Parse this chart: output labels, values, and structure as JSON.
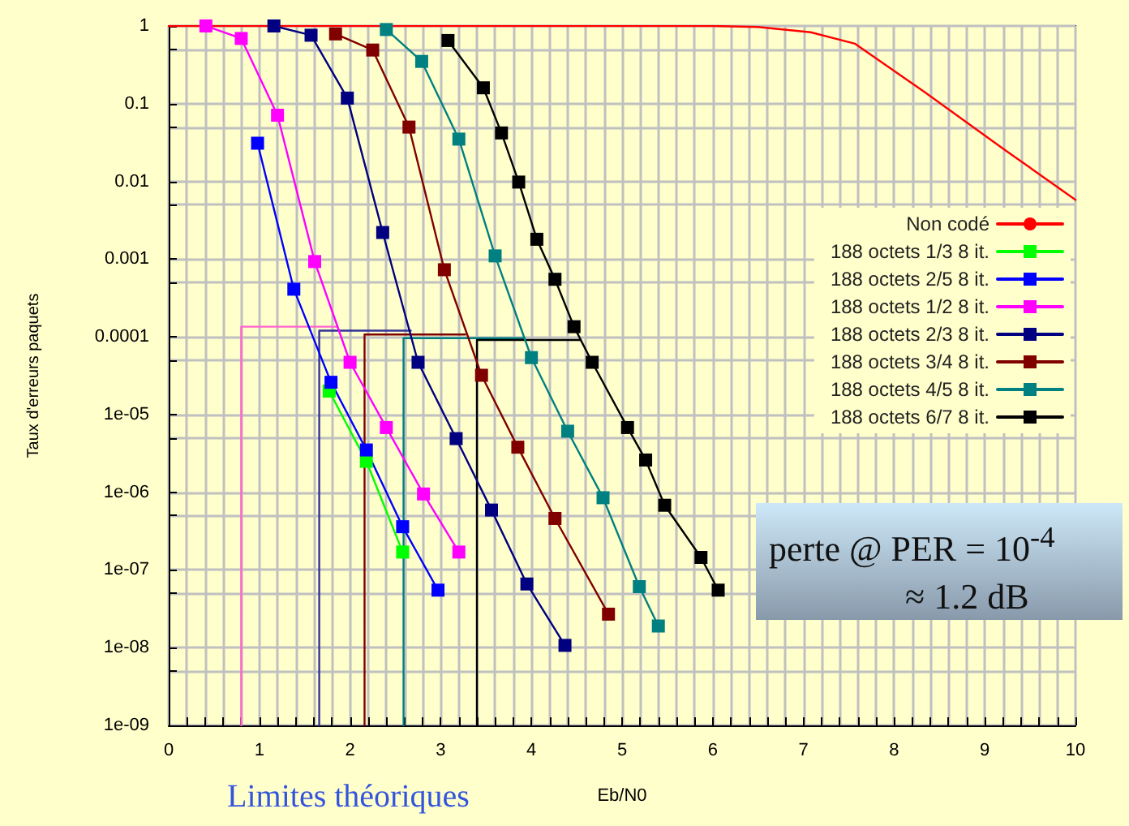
{
  "chart_data": {
    "type": "line",
    "xlabel": "Eb/N0",
    "ylabel": "Taux d'erreurs paquets",
    "xlim": [
      0,
      10
    ],
    "xticks": [
      0,
      {
        "value": 0.2,
        "label": null
      },
      {
        "value": 0.4,
        "label": null
      },
      {
        "value": 0.6,
        "label": null
      },
      {
        "value": 0.8,
        "label": null
      },
      1,
      {
        "value": 1.2,
        "label": null
      },
      {
        "value": 1.4,
        "label": null
      },
      {
        "value": 1.6,
        "label": null
      },
      {
        "value": 1.8,
        "label": null
      },
      2,
      {
        "value": 2.2,
        "label": null
      },
      {
        "value": 2.4,
        "label": null
      },
      {
        "value": 2.6,
        "label": null
      },
      {
        "value": 2.8,
        "label": null
      },
      3,
      {
        "value": 3.2,
        "label": null
      },
      {
        "value": 3.4,
        "label": null
      },
      {
        "value": 3.6,
        "label": null
      },
      {
        "value": 3.8,
        "label": null
      },
      4,
      {
        "value": 4.2,
        "label": null
      },
      {
        "value": 4.4,
        "label": null
      },
      {
        "value": 4.6,
        "label": null
      },
      {
        "value": 4.8,
        "label": null
      },
      5,
      {
        "value": 5.2,
        "label": null
      },
      {
        "value": 5.4,
        "label": null
      },
      {
        "value": 5.6,
        "label": null
      },
      {
        "value": 5.8,
        "label": null
      },
      6,
      {
        "value": 6.2,
        "label": null
      },
      {
        "value": 6.4,
        "label": null
      },
      {
        "value": 6.6,
        "label": null
      },
      {
        "value": 6.8,
        "label": null
      },
      7,
      {
        "value": 7.2,
        "label": null
      },
      {
        "value": 7.4,
        "label": null
      },
      {
        "value": 7.6,
        "label": null
      },
      {
        "value": 7.8,
        "label": null
      },
      8,
      {
        "value": 8.2,
        "label": null
      },
      {
        "value": 8.4,
        "label": null
      },
      {
        "value": 8.6,
        "label": null
      },
      {
        "value": 8.8,
        "label": null
      },
      9,
      {
        "value": 9.2,
        "label": null
      },
      {
        "value": 9.4,
        "label": null
      },
      {
        "value": 9.6,
        "label": null
      },
      {
        "value": 9.8,
        "label": null
      },
      10
    ],
    "ylim": [
      1e-09,
      1
    ],
    "yticks": [
      1,
      {
        "value": 0.5,
        "label": null
      },
      0.1,
      {
        "value": 0.05,
        "label": null
      },
      0.01,
      {
        "value": 0.005,
        "label": null
      },
      0.001,
      {
        "value": 0.0005,
        "label": null
      },
      0.0001,
      {
        "value": 5e-05,
        "label": null
      },
      {
        "value": 1e-05,
        "label": "1e-05"
      },
      {
        "value": 5e-06,
        "label": null
      },
      {
        "value": 1e-06,
        "label": "1e-06"
      },
      {
        "value": 5e-07,
        "label": null
      },
      {
        "value": 1e-07,
        "label": "1e-07"
      },
      {
        "value": 5e-08,
        "label": null
      },
      {
        "value": 1e-08,
        "label": "1e-08"
      },
      {
        "value": 5e-09,
        "label": null
      },
      {
        "value": 1e-09,
        "label": "1e-09"
      }
    ],
    "log": "y",
    "grid": true,
    "legend": "right",
    "marker": "square",
    "line_style": "solid",
    "series": [
      {
        "name": "Non codé",
        "color": "#ff0000",
        "marker": "none",
        "x": [
          0,
          2,
          4,
          6,
          6.5,
          7.08,
          7.57,
          8.34,
          9.23,
          10
        ],
        "values": [
          1,
          1,
          1,
          1,
          0.97,
          0.83,
          0.59,
          0.14,
          0.025,
          0.0058
        ]
      },
      {
        "name": "188 octets 1/3 8 it.",
        "color": "#00ff00",
        "x": [
          1.77,
          2.18,
          2.58
        ],
        "values": [
          2e-05,
          2.5e-06,
          1.7e-07
        ]
      },
      {
        "name": "188 octets 2/5 8 it.",
        "color": "#0000ff",
        "x": [
          0.98,
          1.38,
          1.79,
          2.18,
          2.58,
          2.97
        ],
        "values": [
          0.031,
          0.00041,
          2.6e-05,
          3.5e-06,
          3.6e-07,
          5.5e-08
        ]
      },
      {
        "name": "188 octets 1/2 8 it.",
        "color": "#ff00ff",
        "x": [
          0.41,
          0.8,
          1.2,
          1.61,
          2.0,
          2.4,
          2.81,
          3.2
        ],
        "values": [
          1,
          0.69,
          0.071,
          0.00093,
          4.7e-05,
          6.8e-06,
          9.5e-07,
          1.7e-07
        ]
      },
      {
        "name": "188 octets 2/3 8 it.",
        "color": "#000080",
        "x": [
          1.16,
          1.57,
          1.97,
          2.36,
          2.75,
          3.17,
          3.56,
          3.95,
          4.37
        ],
        "values": [
          1,
          0.76,
          0.118,
          0.0022,
          4.7e-05,
          4.9e-06,
          5.9e-07,
          6.6e-08,
          1.07e-08
        ]
      },
      {
        "name": "188 octets 3/4 8 it.",
        "color": "#800000",
        "x": [
          1.84,
          2.25,
          2.65,
          3.04,
          3.45,
          3.85,
          4.26,
          4.85
        ],
        "values": [
          0.79,
          0.49,
          0.05,
          0.00073,
          3.2e-05,
          3.8e-06,
          4.6e-07,
          2.7e-08
        ]
      },
      {
        "name": "188 octets 4/5 8 it.",
        "color": "#008080",
        "x": [
          2.4,
          2.79,
          3.2,
          3.6,
          4.0,
          4.4,
          4.79,
          5.19,
          5.4
        ],
        "values": [
          0.9,
          0.35,
          0.035,
          0.0011,
          5.4e-05,
          6.1e-06,
          8.5e-07,
          6.1e-08,
          1.9e-08
        ]
      },
      {
        "name": "188 octets 6/7 8 it.",
        "color": "#000000",
        "x": [
          3.08,
          3.47,
          3.67,
          3.86,
          4.06,
          4.26,
          4.47,
          4.67,
          5.06,
          5.26,
          5.47,
          5.87,
          6.06
        ],
        "values": [
          0.65,
          0.16,
          0.042,
          0.0098,
          0.0018,
          0.00055,
          0.000135,
          4.7e-05,
          6.8e-06,
          2.6e-06,
          6.8e-07,
          1.45e-07,
          5.5e-08
        ]
      },
      {
        "color": "#ff66cc",
        "marker": "none",
        "x": [
          0.8,
          0.8,
          1.86
        ],
        "values": [
          1e-09,
          0.000135,
          0.000135
        ]
      },
      {
        "color": "#333399",
        "marker": "none",
        "x": [
          1.66,
          1.66,
          2.67
        ],
        "values": [
          1e-09,
          0.00012,
          0.00012
        ]
      },
      {
        "color": "#800000",
        "marker": "none",
        "x": [
          2.16,
          2.16,
          3.27
        ],
        "values": [
          1e-09,
          0.000107,
          0.000107
        ]
      },
      {
        "color": "#008080",
        "marker": "none",
        "x": [
          2.59,
          2.59,
          3.92
        ],
        "values": [
          1e-09,
          9.6e-05,
          9.6e-05
        ]
      },
      {
        "color": "#000000",
        "marker": "none",
        "x": [
          3.4,
          3.4,
          4.54
        ],
        "values": [
          1e-09,
          9.1e-05,
          9.1e-05
        ]
      }
    ],
    "annotations": [
      "perte @ PER = 10$^{-4}$\n≈ 1.2 dB",
      "Limites théoriques"
    ]
  }
}
